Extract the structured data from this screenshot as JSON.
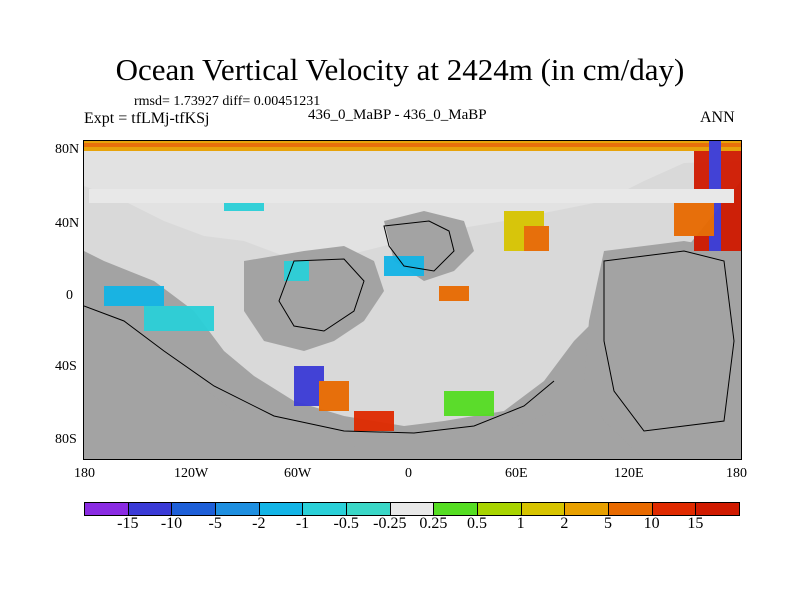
{
  "title": "Ocean Vertical Velocity at 2424m (in cm/day)",
  "stats": "rmsd= 1.73927 diff= 0.00451231",
  "expt": "Expt = tfLMj-tfKSj",
  "case": "436_0_MaBP - 436_0_MaBP",
  "season": "ANN",
  "lat_labels": [
    "80N",
    "40N",
    "0",
    "40S",
    "80S"
  ],
  "lon_labels": [
    "180",
    "120W",
    "60W",
    "0",
    "60E",
    "120E",
    "180"
  ],
  "colorbar": {
    "labels": [
      "-15",
      "-10",
      "-5",
      "-2",
      "-1",
      "-0.5",
      "-0.25",
      "0.25",
      "0.5",
      "1",
      "2",
      "5",
      "10",
      "15"
    ],
    "colors": [
      "#8a2be2",
      "#3a3ad6",
      "#1e5fd8",
      "#1e8fe0",
      "#12b4e6",
      "#2ad0d8",
      "#3ad7c7",
      "#e8e8e8",
      "#55dd22",
      "#a8d400",
      "#d7c400",
      "#e8a000",
      "#e86a00",
      "#e02a00",
      "#d01a00"
    ]
  }
}
